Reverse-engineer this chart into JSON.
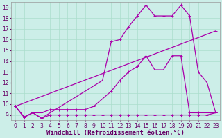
{
  "title": "",
  "xlabel": "Windchill (Refroidissement éolien,°C)",
  "ylabel": "",
  "bg_color": "#cceee8",
  "grid_color": "#aaddcc",
  "line_color": "#aa00aa",
  "x_ticks": [
    0,
    1,
    2,
    3,
    4,
    5,
    6,
    7,
    8,
    9,
    10,
    11,
    12,
    13,
    14,
    15,
    16,
    17,
    18,
    19,
    20,
    21,
    22,
    23
  ],
  "y_ticks": [
    9,
    10,
    11,
    12,
    13,
    14,
    15,
    16,
    17,
    18,
    19
  ],
  "xlim": [
    -0.5,
    23.5
  ],
  "ylim": [
    8.5,
    19.5
  ],
  "series": [
    {
      "x": [
        0,
        1,
        2,
        3,
        4,
        5,
        6,
        7,
        8,
        9,
        10,
        11,
        12,
        13,
        14,
        15,
        16,
        17,
        18,
        19,
        20,
        21,
        22,
        23
      ],
      "y": [
        9.8,
        8.8,
        9.2,
        8.7,
        9.0,
        9.0,
        9.0,
        9.0,
        9.0,
        9.0,
        9.0,
        9.0,
        9.0,
        9.0,
        9.0,
        9.0,
        9.0,
        9.0,
        9.0,
        9.0,
        9.0,
        9.0,
        9.0,
        9.2
      ]
    },
    {
      "x": [
        0,
        1,
        2,
        3,
        4,
        5,
        6,
        7,
        8,
        9,
        10,
        11,
        12,
        13,
        14,
        15,
        16,
        17,
        18,
        19,
        20,
        21,
        22,
        23
      ],
      "y": [
        9.8,
        8.8,
        9.2,
        9.2,
        9.5,
        9.5,
        9.5,
        9.5,
        9.5,
        9.8,
        10.5,
        11.2,
        12.2,
        13.0,
        13.5,
        14.5,
        13.2,
        13.2,
        14.5,
        14.5,
        9.2,
        9.2,
        9.2,
        9.2
      ]
    },
    {
      "x": [
        0,
        1,
        2,
        3,
        10,
        11,
        12,
        13,
        14,
        15,
        16,
        17,
        18,
        19,
        20,
        21,
        22,
        23
      ],
      "y": [
        9.8,
        8.8,
        9.2,
        8.7,
        12.2,
        15.8,
        16.0,
        17.2,
        18.2,
        19.2,
        18.2,
        18.2,
        18.2,
        19.2,
        18.2,
        13.0,
        12.0,
        9.2
      ]
    },
    {
      "x": [
        0,
        23
      ],
      "y": [
        9.8,
        16.8
      ]
    }
  ],
  "marker": "+",
  "marker_size": 3,
  "linewidth": 0.9,
  "xlabel_fontsize": 6.5,
  "tick_fontsize": 5.5,
  "figsize": [
    3.2,
    2.0
  ],
  "dpi": 100
}
